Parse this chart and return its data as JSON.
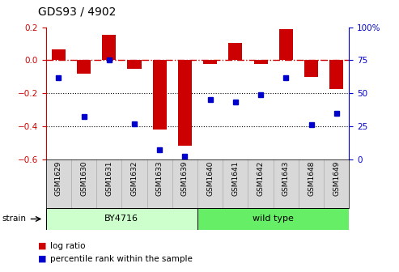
{
  "title": "GDS93 / 4902",
  "samples": [
    "GSM1629",
    "GSM1630",
    "GSM1631",
    "GSM1632",
    "GSM1633",
    "GSM1639",
    "GSM1640",
    "GSM1641",
    "GSM1642",
    "GSM1643",
    "GSM1648",
    "GSM1649"
  ],
  "log_ratio": [
    0.065,
    -0.08,
    0.155,
    -0.05,
    -0.42,
    -0.52,
    -0.025,
    0.105,
    -0.025,
    0.19,
    -0.1,
    -0.175
  ],
  "percentile_right": [
    62,
    32,
    75,
    27,
    7,
    2,
    45,
    43,
    49,
    62,
    26,
    35
  ],
  "bar_color": "#cc0000",
  "dot_color": "#0000cc",
  "ref_line_color": "#cc0000",
  "left_tick_color": "#cc0000",
  "right_tick_color": "#0000cc",
  "ylim_left": [
    -0.6,
    0.2
  ],
  "ylim_right": [
    0,
    100
  ],
  "strain_color_by4716": "#ccffcc",
  "strain_color_wild": "#66ee66",
  "label_bg": "#d8d8d8",
  "title_fontsize": 10,
  "tick_fontsize": 7.5,
  "sample_fontsize": 6.5,
  "legend_fontsize": 7.5,
  "strain_fontsize": 8
}
